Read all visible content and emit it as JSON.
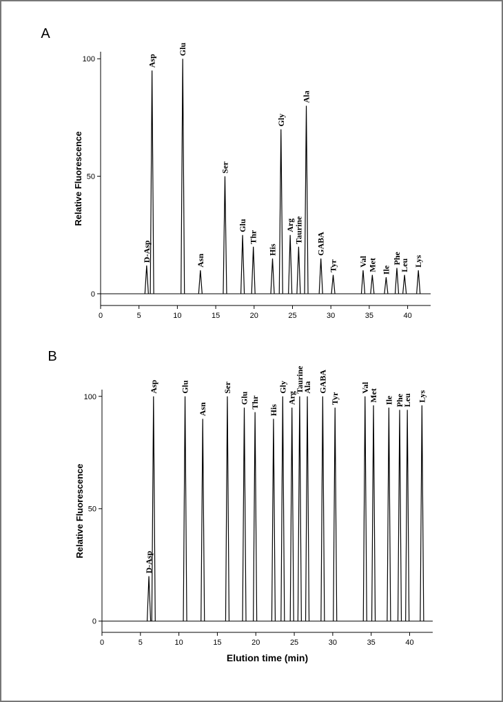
{
  "chart_data": [
    {
      "type": "chromatogram",
      "panel_label": "A",
      "ylabel": "Relative Fluorescence",
      "color": "#000000",
      "x": [
        6.0,
        6.7,
        10.7,
        13.0,
        16.2,
        18.5,
        19.9,
        22.4,
        23.5,
        24.7,
        25.8,
        26.8,
        28.7,
        30.3,
        34.2,
        35.4,
        37.2,
        38.6,
        39.6,
        41.4
      ],
      "values": [
        12,
        95,
        100,
        10,
        50,
        25,
        20,
        15,
        70,
        25,
        20,
        80,
        15,
        8,
        10,
        8,
        7,
        11,
        8,
        10
      ],
      "peak_labels": [
        "D-Asp",
        "Asp",
        "Glu",
        "Asn",
        "Ser",
        "Glu",
        "Thr",
        "His",
        "Gly",
        "Arg",
        "Taurine",
        "Ala",
        "GABA",
        "Tyr",
        "Val",
        "Met",
        "Ile",
        "Phe",
        "Leu",
        "Lys"
      ],
      "xlim": [
        0,
        43
      ],
      "ylim": [
        -5,
        103
      ],
      "xticks": [
        0,
        5,
        10,
        15,
        20,
        25,
        30,
        35,
        40
      ],
      "yticks": [
        0,
        50,
        100
      ]
    },
    {
      "type": "chromatogram",
      "panel_label": "B",
      "ylabel": "Relative Fluorescence",
      "xlabel": "Elution time (min)",
      "color": "#000000",
      "x": [
        6.1,
        6.7,
        10.8,
        13.1,
        16.3,
        18.5,
        19.9,
        22.3,
        23.5,
        24.7,
        25.7,
        26.7,
        28.7,
        30.3,
        34.2,
        35.3,
        37.3,
        38.7,
        39.7,
        41.6
      ],
      "values": [
        20,
        100,
        100,
        90,
        100,
        95,
        93,
        90,
        100,
        95,
        100,
        100,
        100,
        95,
        100,
        96,
        95,
        94,
        94,
        96
      ],
      "peak_labels": [
        "D-Asp",
        "Asp",
        "Glu",
        "Asn",
        "Ser",
        "Glu",
        "Thr",
        "His",
        "Gly",
        "Arg",
        "Taurine",
        "Ala",
        "GABA",
        "Tyr",
        "Val",
        "Met",
        "Ile",
        "Phe",
        "Leu",
        "Lys"
      ],
      "xlim": [
        0,
        43
      ],
      "ylim": [
        -5,
        103
      ],
      "xticks": [
        0,
        5,
        10,
        15,
        20,
        25,
        30,
        35,
        40
      ],
      "yticks": [
        0,
        50,
        100
      ]
    }
  ]
}
